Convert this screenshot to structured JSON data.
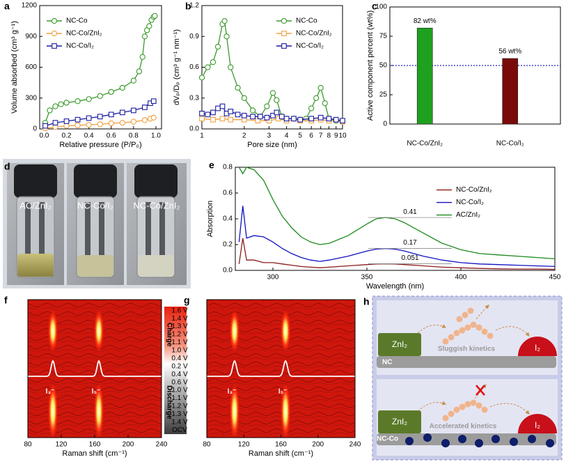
{
  "chart_data": [
    {
      "panel": "a",
      "type": "line",
      "xlabel": "Relative pressure (P/P₀)",
      "ylabel": "Volume absorbed (cm³ g⁻¹)",
      "xlim": [
        -0.04,
        1.05
      ],
      "ylim": [
        0,
        1200
      ],
      "xticks": [
        {
          "value": 0,
          "label": "0.0"
        },
        0.2,
        0.4,
        0.6,
        0.8,
        {
          "value": 1,
          "label": "1.0"
        }
      ],
      "yticks": [
        0,
        300,
        600,
        900,
        1200
      ],
      "legend": "upper left",
      "series": [
        {
          "name": "NC-Co",
          "color": "#3a9a2a",
          "marker": "circle",
          "x": [
            0.01,
            0.05,
            0.1,
            0.15,
            0.2,
            0.3,
            0.4,
            0.5,
            0.6,
            0.7,
            0.8,
            0.85,
            0.88,
            0.9,
            0.92,
            0.94,
            0.96,
            0.98,
            0.99
          ],
          "values": [
            60,
            180,
            220,
            240,
            255,
            270,
            290,
            320,
            360,
            400,
            470,
            560,
            700,
            900,
            960,
            1000,
            1060,
            1090,
            1100
          ]
        },
        {
          "name": "NC-Co/ZnI₂",
          "color": "#f0a040",
          "marker": "circle",
          "x": [
            0.01,
            0.1,
            0.2,
            0.3,
            0.4,
            0.5,
            0.6,
            0.7,
            0.8,
            0.9,
            0.95,
            0.98
          ],
          "values": [
            5,
            20,
            30,
            35,
            40,
            45,
            55,
            60,
            70,
            85,
            100,
            110
          ]
        },
        {
          "name": "NC-Co/I₂",
          "color": "#1a1aa0",
          "marker": "square",
          "x": [
            0.01,
            0.1,
            0.2,
            0.3,
            0.4,
            0.5,
            0.6,
            0.7,
            0.8,
            0.9,
            0.95,
            0.98
          ],
          "values": [
            30,
            60,
            75,
            90,
            105,
            120,
            140,
            160,
            180,
            210,
            250,
            270
          ]
        }
      ]
    },
    {
      "panel": "b",
      "type": "line",
      "xlabel": "Pore size (nm)",
      "ylabel": "dVₚ/Dₚ (cm³ g⁻¹ nm⁻¹)",
      "xlog": true,
      "xlim": [
        1,
        10
      ],
      "ylim": [
        0,
        1.2
      ],
      "xticks": [
        1,
        2,
        3,
        4,
        5,
        6,
        7,
        8,
        9,
        10
      ],
      "yticks": [
        {
          "value": 0,
          "label": "0.0"
        },
        0.3,
        0.6,
        0.9,
        1.2
      ],
      "legend": "upper right",
      "series": [
        {
          "name": "NC-Co",
          "color": "#3a9a2a",
          "marker": "circle",
          "x": [
            1,
            1.1,
            1.2,
            1.3,
            1.4,
            1.45,
            1.5,
            1.6,
            1.8,
            2,
            2.3,
            2.6,
            2.9,
            3.2,
            3.4,
            3.7,
            4,
            4.5,
            5,
            5.5,
            6,
            6.5,
            7,
            7.5,
            8,
            9,
            10
          ],
          "values": [
            0.5,
            0.6,
            0.65,
            0.8,
            1.02,
            1.05,
            0.9,
            0.6,
            0.4,
            0.3,
            0.18,
            0.12,
            0.22,
            0.35,
            0.28,
            0.12,
            0.1,
            0.1,
            0.09,
            0.1,
            0.2,
            0.3,
            0.4,
            0.25,
            0.1,
            0.08,
            0.07
          ]
        },
        {
          "name": "NC-Co/ZnI₂",
          "color": "#f0a040",
          "marker": "square",
          "x": [
            1,
            1.2,
            1.4,
            1.6,
            2,
            2.5,
            3,
            3.5,
            4,
            5,
            6,
            7,
            8,
            10
          ],
          "values": [
            0.1,
            0.09,
            0.1,
            0.09,
            0.09,
            0.08,
            0.08,
            0.1,
            0.08,
            0.08,
            0.08,
            0.09,
            0.08,
            0.07
          ]
        },
        {
          "name": "NC-Co/I₂",
          "color": "#1a1aa0",
          "marker": "square",
          "x": [
            1,
            1.1,
            1.2,
            1.3,
            1.4,
            1.5,
            1.6,
            1.8,
            2,
            2.3,
            2.6,
            2.9,
            3.2,
            3.4,
            3.7,
            4,
            4.5,
            5,
            6,
            7,
            8,
            9,
            10
          ],
          "values": [
            0.15,
            0.14,
            0.16,
            0.2,
            0.22,
            0.15,
            0.17,
            0.14,
            0.13,
            0.12,
            0.12,
            0.11,
            0.13,
            0.16,
            0.12,
            0.1,
            0.1,
            0.09,
            0.1,
            0.11,
            0.1,
            0.09,
            0.08
          ]
        }
      ]
    },
    {
      "panel": "c",
      "type": "bar",
      "ylabel": "Active component percent (wt%)",
      "categories": [
        "NC-Co/ZnI₂",
        "NC-Co/I₂"
      ],
      "values": [
        82,
        56
      ],
      "value_labels": [
        "82 wt%",
        "56 wt%"
      ],
      "colors": [
        "#1fa01f",
        "#7a0a0a"
      ],
      "ylim": [
        0,
        100
      ],
      "yticks": [
        0,
        25,
        50,
        75,
        100
      ],
      "reference_line": {
        "value": 50,
        "color": "#2020c0"
      }
    },
    {
      "panel": "e",
      "type": "line",
      "xlabel": "Wavelength (nm)",
      "ylabel": "Absorption",
      "xlim": [
        280,
        450
      ],
      "ylim": [
        0,
        0.8
      ],
      "xticks": [
        300,
        350,
        400,
        450
      ],
      "yticks": [
        {
          "value": 0,
          "label": "0.0"
        },
        0.2,
        0.4,
        0.6,
        0.8
      ],
      "legend": "right",
      "x": [
        282,
        284,
        286,
        290,
        295,
        300,
        305,
        310,
        315,
        320,
        325,
        330,
        340,
        350,
        355,
        360,
        365,
        370,
        380,
        390,
        400,
        410,
        420,
        430,
        440,
        450
      ],
      "series": [
        {
          "name": "NC-Co/ZnI₂",
          "color": "#8b1a1a",
          "values": [
            0.05,
            0.25,
            0.08,
            0.08,
            0.06,
            0.06,
            0.05,
            0.04,
            0.03,
            0.025,
            0.02,
            0.025,
            0.035,
            0.045,
            0.05,
            0.051,
            0.05,
            0.045,
            0.035,
            0.025,
            0.02,
            0.015,
            0.012,
            0.01,
            0.01,
            0.008
          ]
        },
        {
          "name": "NC-Co/I₂",
          "color": "#1010c0",
          "values": [
            0.22,
            0.5,
            0.25,
            0.27,
            0.26,
            0.22,
            0.17,
            0.13,
            0.1,
            0.08,
            0.07,
            0.08,
            0.11,
            0.15,
            0.165,
            0.17,
            0.165,
            0.15,
            0.11,
            0.08,
            0.06,
            0.05,
            0.045,
            0.04,
            0.035,
            0.03
          ]
        },
        {
          "name": "AC/ZnI₂",
          "color": "#1a8a1a",
          "values": [
            0.8,
            0.75,
            0.8,
            0.78,
            0.7,
            0.55,
            0.42,
            0.33,
            0.26,
            0.22,
            0.2,
            0.21,
            0.27,
            0.36,
            0.4,
            0.41,
            0.4,
            0.37,
            0.29,
            0.21,
            0.16,
            0.13,
            0.12,
            0.11,
            0.1,
            0.09
          ]
        }
      ],
      "annotations": [
        {
          "x": 360,
          "value": 0.41
        },
        {
          "x": 360,
          "value": 0.17
        },
        {
          "x": 360,
          "value": 0.051
        }
      ]
    },
    {
      "panel": "f",
      "type": "contour",
      "xlabel": "Raman shift (cm⁻¹)",
      "xlim": [
        80,
        240
      ],
      "xticks": [
        80,
        120,
        160,
        200,
        240
      ],
      "peaks": [
        {
          "x": 110,
          "label": "I₃⁻"
        },
        {
          "x": 165,
          "label": "I₅⁻"
        }
      ],
      "colorbar": {
        "top": "Charge",
        "bottom": "Discharge",
        "labels": [
          "1.6 V",
          "1.4 V",
          "1.3 V",
          "1.2 V",
          "1.1 V",
          "1.0 V",
          "0.4 V",
          "0.2 V",
          "0.4 V",
          "0.6 V",
          "1.0 V",
          "1.1 V",
          "1.2 V",
          "1.3 V",
          "1.4 V",
          "OCV"
        ]
      }
    },
    {
      "panel": "g",
      "type": "contour",
      "xlabel": "Raman shift (cm⁻¹)",
      "xlim": [
        80,
        240
      ],
      "xticks": [
        80,
        120,
        160,
        200,
        240
      ],
      "peaks": [
        {
          "x": 110,
          "label": "I₃⁻"
        },
        {
          "x": 165,
          "label": "I₅⁻"
        }
      ]
    }
  ],
  "photos": {
    "panel": "d",
    "labels": [
      "AC/ZnI₂",
      "NC-Co/I₂",
      "NC-Co/ZnI₂"
    ]
  },
  "diagram": {
    "panel": "h",
    "top": {
      "left": "ZnI₂",
      "middle": "Sluggish kinetics",
      "right": "I₂",
      "substrate": "NC"
    },
    "bottom": {
      "left": "ZnI₂",
      "middle": "Accelerated kinetics",
      "right": "I₂",
      "substrate": "NC-Co"
    }
  }
}
